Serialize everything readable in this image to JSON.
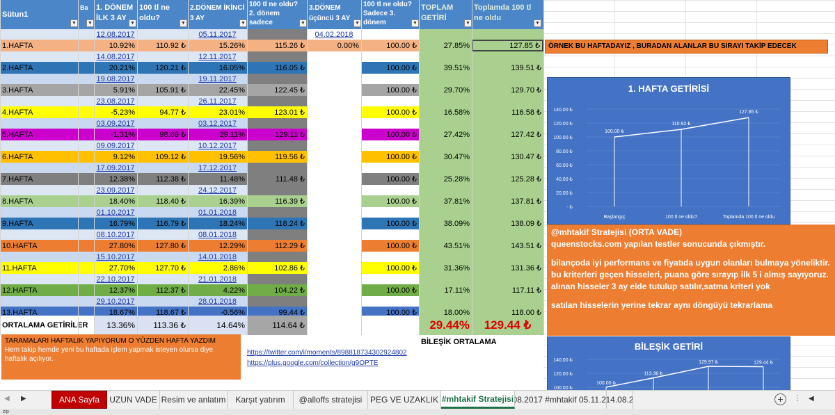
{
  "header": {
    "sutun": "Sütun1",
    "b": "Ba",
    "d1": "1. DÖNEM İLK 3 AY",
    "tl1": "100 tl ne oldu?",
    "d2": "2.DÖNEM İKİNCİ 3 AY",
    "tl2": "100 tl ne oldu? 2. dönem sadece",
    "d3": "3.DÖNEM üçüncü 3 AY",
    "tl3": "100 tl ne oldu? Sadece 3. dönem",
    "toplam": "TOPLAM GETİRİ",
    "toplamda": "Toplamda 100 tl ne oldu"
  },
  "top_dates": {
    "d1": "12.08.2017",
    "d2": "05.11.2017",
    "d3": "04.02.2018"
  },
  "rows": [
    {
      "label": "1.HAFTA",
      "p1": "10.92%",
      "v1": "110.92 ₺",
      "p2": "15.26%",
      "v2": "115.26 ₺",
      "p3": "0.00%",
      "v3": "100.00 ₺",
      "tot": "27.85%",
      "totv": "127.85 ₺",
      "date1": "14.08.2017",
      "date2": "12.11.2017"
    },
    {
      "label": "2.HAFTA",
      "p1": "20.21%",
      "v1": "120.21 ₺",
      "p2": "16.05%",
      "v2": "116.05 ₺",
      "p3": "",
      "v3": "100.00 ₺",
      "tot": "39.51%",
      "totv": "139.51 ₺",
      "date1": "19.08.2017",
      "date2": "19.11.2017"
    },
    {
      "label": "3.HAFTA",
      "p1": "5.91%",
      "v1": "105.91 ₺",
      "p2": "22.45%",
      "v2": "122.45 ₺",
      "p3": "",
      "v3": "100.00 ₺",
      "tot": "29.70%",
      "totv": "129.70 ₺",
      "date1": "23.08.2017",
      "date2": "26.11.2017"
    },
    {
      "label": "4.HAFTA",
      "p1": "-5.23%",
      "v1": "94.77 ₺",
      "p2": "23.01%",
      "v2": "123.01 ₺",
      "p3": "",
      "v3": "100.00 ₺",
      "tot": "16.58%",
      "totv": "116.58 ₺",
      "date1": "03.09.2017",
      "date2": "03.12.2017"
    },
    {
      "label": "5.HAFTA",
      "p1": "-1.31%",
      "v1": "98.69 ₺",
      "p2": "29.11%",
      "v2": "129.11 ₺",
      "p3": "",
      "v3": "100.00 ₺",
      "tot": "27.42%",
      "totv": "127.42 ₺",
      "date1": "09.09.2017",
      "date2": "10.12.2017"
    },
    {
      "label": "6.HAFTA",
      "p1": "9.12%",
      "v1": "109.12 ₺",
      "p2": "19.56%",
      "v2": "119.56 ₺",
      "p3": "",
      "v3": "100.00 ₺",
      "tot": "30.47%",
      "totv": "130.47 ₺",
      "date1": "17.09.2017",
      "date2": "17.12.2017"
    },
    {
      "label": "7.HAFTA",
      "p1": "12.38%",
      "v1": "112.38 ₺",
      "p2": "11.48%",
      "v2": "111.48 ₺",
      "p3": "",
      "v3": "100.00 ₺",
      "tot": "25.28%",
      "totv": "125.28 ₺",
      "date1": "23.09.2017",
      "date2": "24.12.2017"
    },
    {
      "label": "8.HAFTA",
      "p1": "18.40%",
      "v1": "118.40 ₺",
      "p2": "16.39%",
      "v2": "116.39 ₺",
      "p3": "",
      "v3": "100.00 ₺",
      "tot": "37.81%",
      "totv": "137.81 ₺",
      "date1": "01.10.2017",
      "date2": "01.01.2018"
    },
    {
      "label": "9.HAFTA",
      "p1": "16.79%",
      "v1": "116.79 ₺",
      "p2": "18.24%",
      "v2": "118.24 ₺",
      "p3": "",
      "v3": "100.00 ₺",
      "tot": "38.09%",
      "totv": "138.09 ₺",
      "date1": "08.10.2017",
      "date2": "08.01.2018"
    },
    {
      "label": "10.HAFTA",
      "p1": "27.80%",
      "v1": "127.80 ₺",
      "p2": "12.29%",
      "v2": "112.29 ₺",
      "p3": "",
      "v3": "100.00 ₺",
      "tot": "43.51%",
      "totv": "143.51 ₺",
      "date1": "15.10.2017",
      "date2": "14.01.2018"
    },
    {
      "label": "11.HAFTA",
      "p1": "27.70%",
      "v1": "127.70 ₺",
      "p2": "2.86%",
      "v2": "102.86 ₺",
      "p3": "",
      "v3": "100.00 ₺",
      "tot": "31.36%",
      "totv": "131.36 ₺",
      "date1": "22.10.2017",
      "date2": "21.01.2018"
    },
    {
      "label": "12.HAFTA",
      "p1": "12.37%",
      "v1": "112.37 ₺",
      "p2": "4.22%",
      "v2": "104.22 ₺",
      "p3": "",
      "v3": "100.00 ₺",
      "tot": "17.11%",
      "totv": "117.11 ₺",
      "date1": "29.10.2017",
      "date2": "28.01.2018"
    },
    {
      "label": "13.HAFTA",
      "p1": "18.67%",
      "v1": "118.67 ₺",
      "p2": "-0.56%",
      "v2": "99.44 ₺",
      "p3": "",
      "v3": "100.00 ₺",
      "tot": "18.00%",
      "totv": "118.00 ₺",
      "date1": "",
      "date2": ""
    }
  ],
  "avg": {
    "label": "ORTALAMA GETİRİLER",
    "p1": "13.36%",
    "v1": "113.36 ₺",
    "p2": "14.64%",
    "v2": "114.64 ₺",
    "tot": "29.44%",
    "totv": "129.44 ₺",
    "bilesik": "BİLEŞİK ORTALAMA"
  },
  "note_top": "ÖRNEK BU HAFTADAYIZ , BURADAN ALANLAR BU SIRAYI TAKİP EDECEK",
  "info": {
    "title": "@mhtakif Stratejisi  (ORTA VADE)",
    "line1": "queenstocks.com yapılan testler sonucunda çıkmıştır.",
    "line2": "bilançoda iyi performans ve fiyatıda uygun olanları bulmaya yöneliktir.",
    "line3": "bu kriterleri geçen hisseleri, puana göre sırayıp ilk 5 i almış sayıyoruz.",
    "line4": "alınan hisseler 3 ay elde tutulup satılır,satma kriteri yok",
    "line5": "satılan hisselerin yerine tekrar aynı döngüyü tekrarlama"
  },
  "note_bottom": {
    "line1": "TARAMALARI HAFTALIK YAPIYORUM O YÜZDEN HAFTA YAZDIM",
    "line2": "Hem takip hemde yeni bu haftada işlem yapmak isteyen olursa diye haftalık açılıyor."
  },
  "links": [
    "https://twitter.com/i/moments/898818734302924802",
    "https://plus.google.com/collection/g9OPTE"
  ],
  "chart1": {
    "title": "1. HAFTA GETİRİSİ",
    "yticks": [
      "140.00 ₺",
      "120.00 ₺",
      "100.00 ₺",
      "80.00 ₺",
      "60.00 ₺",
      "40.00 ₺",
      "20.00 ₺",
      "- ₺"
    ],
    "point_labels": [
      "100.00 ₺",
      "110.92 ₺",
      "127.85 ₺"
    ],
    "xlabels": [
      "Başlangıç",
      "100 tl ne oldu?",
      "Toplamda 100 tl ne oldu"
    ]
  },
  "chart2": {
    "title": "BİLEŞİK GETİRİ",
    "yticks": [
      "140.00 ₺",
      "120.00 ₺",
      "100.00 ₺"
    ],
    "point_labels": [
      "100.00 ₺",
      "113.36 ₺",
      "129.97 ₺",
      "129.44 ₺"
    ]
  },
  "tabs": [
    {
      "label": "ANA Sayfa"
    },
    {
      "label": "UZUN VADE"
    },
    {
      "label": "Resim ve anlatım"
    },
    {
      "label": "Karşıt yatırım"
    },
    {
      "label": "@alloffs stratejisi"
    },
    {
      "label": "PEG VE UZAKLIK"
    },
    {
      "label": "#mhtakif Stratejisi"
    },
    {
      "label": "12.08.2017 #mhtakif 05.11.2017"
    },
    {
      "label": "14.08.2"
    }
  ],
  "status": "zip",
  "colors": {
    "header": "#4a86c8",
    "green": "#a9d08e"
  }
}
